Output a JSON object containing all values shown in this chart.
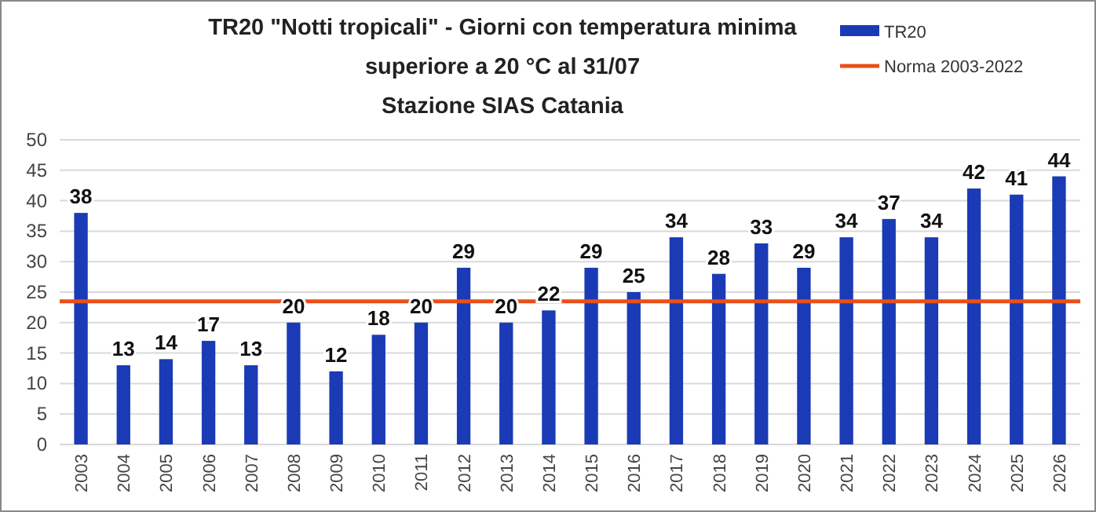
{
  "chart_data": {
    "type": "bar",
    "title": "TR20 \"Notti tropicali\" - Giorni con temperatura minima superiore a 20 °C al 31/07 Stazione SIAS Catania",
    "categories": [
      "2003",
      "2004",
      "2005",
      "2006",
      "2007",
      "2008",
      "2009",
      "2010",
      "2011",
      "2012",
      "2013",
      "2014",
      "2015",
      "2016",
      "2017",
      "2018",
      "2019",
      "2020",
      "2021",
      "2022",
      "2023",
      "2024",
      "2025",
      "2026"
    ],
    "series": [
      {
        "name": "TR20",
        "color": "#1a3bb5",
        "values": [
          38,
          13,
          14,
          17,
          13,
          20,
          12,
          18,
          20,
          29,
          20,
          22,
          29,
          25,
          34,
          28,
          33,
          29,
          34,
          37,
          34,
          42,
          41,
          44
        ]
      }
    ],
    "ref_lines": [
      {
        "axis": "y",
        "value": 23.5,
        "label": "Norma 2003-2022",
        "color": "#e8501a"
      }
    ],
    "ylim": [
      0,
      50
    ],
    "yticks": [
      0,
      5,
      10,
      15,
      20,
      25,
      30,
      35,
      40,
      45,
      50
    ],
    "grid": "y",
    "legend": "top right",
    "data_labels": true
  }
}
